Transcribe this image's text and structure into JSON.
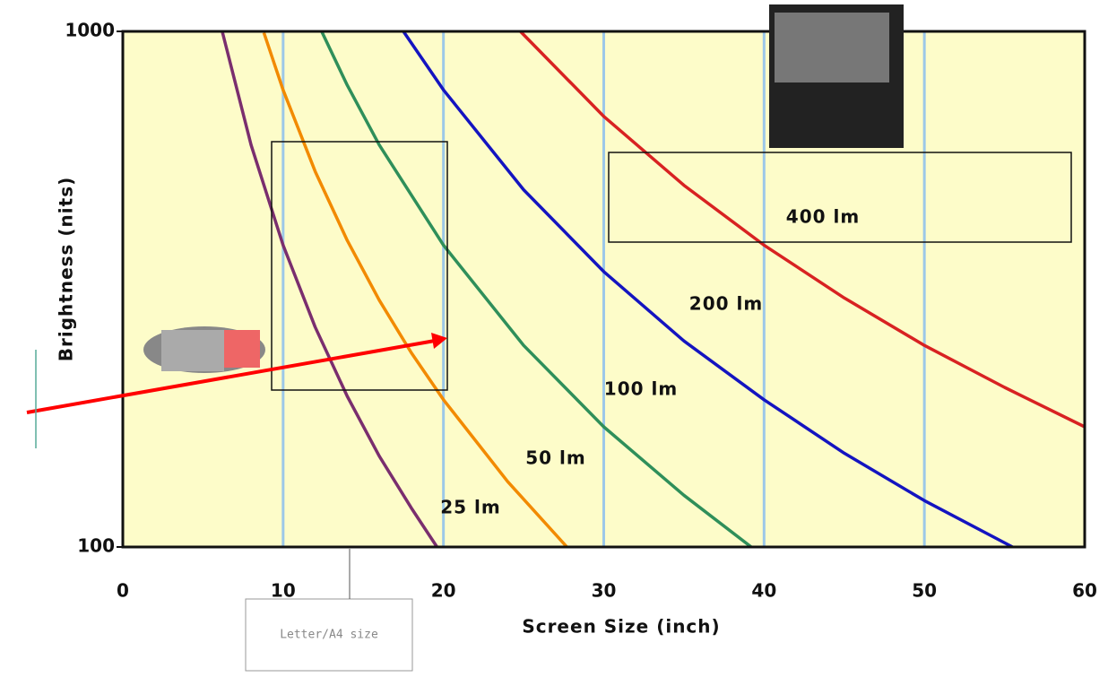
{
  "chart_data": {
    "type": "line",
    "x_label": "Screen Size (inch)",
    "y_label": "Brightness (nits)",
    "xlim": [
      0,
      60
    ],
    "xticks": [
      0,
      10,
      20,
      30,
      40,
      50,
      60
    ],
    "ylim": [
      100,
      1000
    ],
    "yticks": [
      100,
      1000
    ],
    "yscale": "log",
    "grid": "x",
    "annotation": "Letter/A4 size",
    "series": [
      {
        "name": "25 lm",
        "color": "#7a2e6e",
        "x": [
          6.2,
          8,
          10,
          12,
          14,
          16,
          18,
          19.6
        ],
        "values": [
          1000,
          602,
          385,
          267,
          196,
          150,
          119,
          100
        ]
      },
      {
        "name": "50 lm",
        "color": "#f28a00",
        "x": [
          8.8,
          10,
          12,
          14,
          16,
          18,
          20,
          24,
          27.7
        ],
        "values": [
          994,
          770,
          535,
          393,
          301,
          238,
          193,
          134,
          100
        ]
      },
      {
        "name": "100 lm",
        "color": "#2f8f5a",
        "x": [
          12.4,
          14,
          16,
          20,
          25,
          30,
          35,
          39.2
        ],
        "values": [
          1000,
          786,
          602,
          385,
          246,
          171,
          126,
          100
        ]
      },
      {
        "name": "200 lm",
        "color": "#1414c0",
        "x": [
          17.5,
          20,
          25,
          30,
          35,
          40,
          45,
          50,
          55.5
        ],
        "values": [
          1000,
          770,
          493,
          342,
          251,
          193,
          152,
          123,
          100
        ]
      },
      {
        "name": "400 lm",
        "color": "#d82222",
        "x": [
          24.8,
          30,
          35,
          40,
          45,
          50,
          55,
          60
        ],
        "values": [
          1000,
          684,
          503,
          385,
          304,
          246,
          204,
          171
        ]
      }
    ]
  }
}
